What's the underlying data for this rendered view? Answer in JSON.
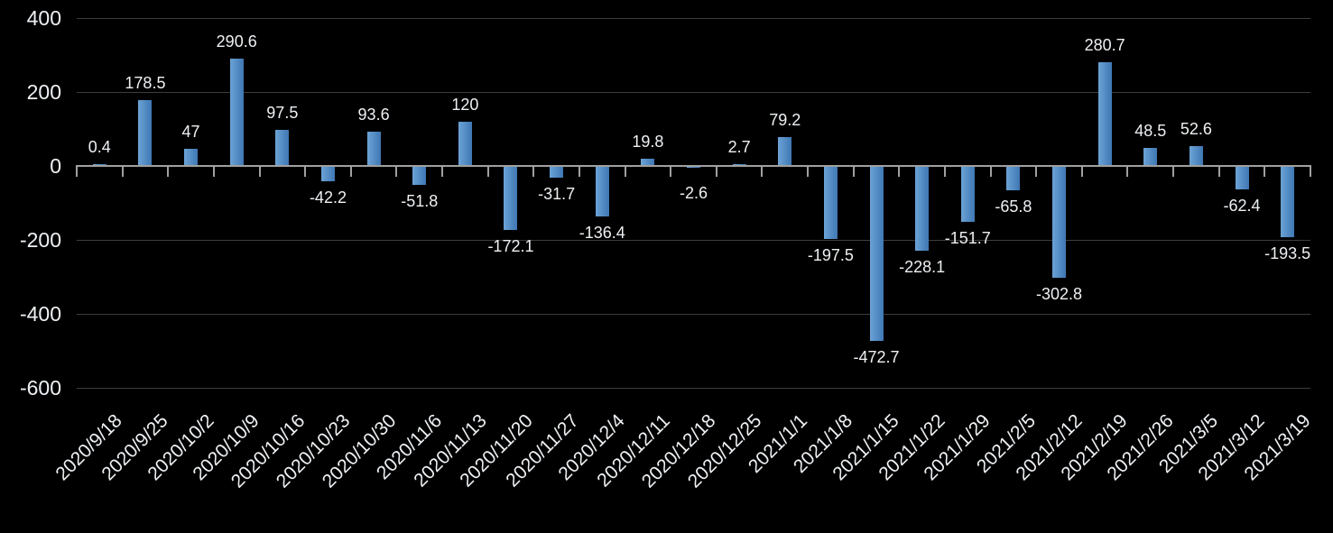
{
  "chart_data": {
    "type": "bar",
    "title": "",
    "xlabel": "",
    "ylabel": "",
    "legend": "none",
    "grid": true,
    "ylim": [
      -600,
      400
    ],
    "y_ticks": [
      400,
      200,
      0,
      -200,
      -400,
      -600
    ],
    "y_tick_labels": [
      "400",
      "200",
      "0",
      "-200",
      "-400",
      "-600"
    ],
    "categories": [
      "2020/9/18",
      "2020/9/25",
      "2020/10/2",
      "2020/10/9",
      "2020/10/16",
      "2020/10/23",
      "2020/10/30",
      "2020/11/6",
      "2020/11/13",
      "2020/11/20",
      "2020/11/27",
      "2020/12/4",
      "2020/12/11",
      "2020/12/18",
      "2020/12/25",
      "2021/1/1",
      "2021/1/8",
      "2021/1/15",
      "2021/1/22",
      "2021/1/29",
      "2021/2/5",
      "2021/2/12",
      "2021/2/19",
      "2021/2/26",
      "2021/3/5",
      "2021/3/12",
      "2021/3/19"
    ],
    "values": [
      0.4,
      178.5,
      47,
      290.6,
      97.5,
      -42.2,
      93.6,
      -51.8,
      120,
      -172.1,
      -31.7,
      -136.4,
      19.8,
      -2.6,
      2.7,
      79.2,
      -197.5,
      -472.7,
      -228.1,
      -151.7,
      -65.8,
      -302.8,
      280.7,
      48.5,
      52.6,
      -62.4,
      -193.5
    ],
    "data_labels": [
      "0.4",
      "178.5",
      "47",
      "290.6",
      "97.5",
      "-42.2",
      "93.6",
      "-51.8",
      "120",
      "-172.1",
      "-31.7",
      "-136.4",
      "19.8",
      "-2.6",
      "2.7",
      "79.2",
      "-197.5",
      "-472.7",
      "-228.1",
      "-151.7",
      "-65.8",
      "-302.8",
      "280.7",
      "48.5",
      "52.6",
      "-62.4",
      "-193.5"
    ],
    "colors": {
      "background": "#000000",
      "bar_gradient_left": "#6ba3d6",
      "bar_gradient_right": "#3f77b4",
      "gridline": "#3d3d3d",
      "axis_line": "#a0a0a0",
      "text": "#eef1f4"
    }
  }
}
